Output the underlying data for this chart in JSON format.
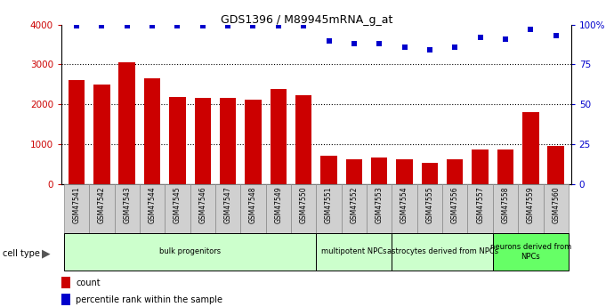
{
  "title": "GDS1396 / M89945mRNA_g_at",
  "samples": [
    "GSM47541",
    "GSM47542",
    "GSM47543",
    "GSM47544",
    "GSM47545",
    "GSM47546",
    "GSM47547",
    "GSM47548",
    "GSM47549",
    "GSM47550",
    "GSM47551",
    "GSM47552",
    "GSM47553",
    "GSM47554",
    "GSM47555",
    "GSM47556",
    "GSM47557",
    "GSM47558",
    "GSM47559",
    "GSM47560"
  ],
  "counts": [
    2600,
    2500,
    3050,
    2650,
    2180,
    2160,
    2160,
    2120,
    2380,
    2220,
    720,
    630,
    680,
    620,
    540,
    630,
    880,
    880,
    1800,
    950
  ],
  "percentile_ranks": [
    99,
    99,
    99,
    99,
    99,
    99,
    99,
    99,
    99,
    99,
    90,
    88,
    88,
    86,
    84,
    86,
    92,
    91,
    97,
    93
  ],
  "bar_color": "#cc0000",
  "dot_color": "#0000cc",
  "groups": [
    {
      "label": "bulk progenitors",
      "start": 0,
      "end": 10,
      "color": "#ccffcc"
    },
    {
      "label": "multipotent NPCs",
      "start": 10,
      "end": 13,
      "color": "#ccffcc"
    },
    {
      "label": "astrocytes derived from NPCs",
      "start": 13,
      "end": 17,
      "color": "#ccffcc"
    },
    {
      "label": "neurons derived from\nNPCs",
      "start": 17,
      "end": 20,
      "color": "#66ff66"
    }
  ],
  "ylim_left": [
    0,
    4000
  ],
  "ylim_right": [
    0,
    100
  ],
  "yticks_left": [
    0,
    1000,
    2000,
    3000,
    4000
  ],
  "ytick_labels_left": [
    "0",
    "1000",
    "2000",
    "3000",
    "4000"
  ],
  "yticks_right": [
    0,
    25,
    50,
    75,
    100
  ],
  "ytick_labels_right": [
    "0",
    "25",
    "50",
    "75",
    "100%"
  ],
  "xtick_bg": "#d8d8d8",
  "plot_bg": "#ffffff",
  "grid_color": "#000000"
}
